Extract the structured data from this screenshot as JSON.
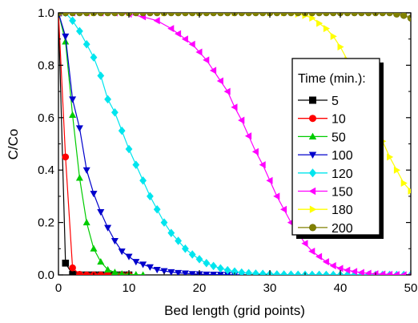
{
  "chart_data": {
    "type": "line",
    "title": "",
    "xlabel": "Bed length (grid points)",
    "ylabel": "C/Co",
    "xlim": [
      0,
      50
    ],
    "ylim": [
      0,
      1.0
    ],
    "xticks": [
      0,
      10,
      20,
      30,
      40,
      50
    ],
    "xtick_labels": [
      "0",
      "10",
      "20",
      "30",
      "40",
      "50"
    ],
    "yticks": [
      0.0,
      0.2,
      0.4,
      0.6,
      0.8,
      1.0
    ],
    "ytick_labels": [
      "0.0",
      "0.2",
      "0.4",
      "0.6",
      "0.8",
      "1.0"
    ],
    "grid": false,
    "legend_title": "Time (min.):",
    "legend_position": "right",
    "series": [
      {
        "name": "5",
        "color": "#000000",
        "marker": "square",
        "x": [
          0,
          1,
          2,
          3,
          4,
          5,
          6,
          7,
          8,
          9,
          10
        ],
        "y": [
          1.0,
          0.045,
          0.002,
          0,
          0,
          0,
          0,
          0,
          0,
          0,
          0
        ]
      },
      {
        "name": "10",
        "color": "#ff0000",
        "marker": "circle",
        "x": [
          0,
          1,
          2,
          3,
          4,
          5,
          6,
          7,
          8,
          9,
          10
        ],
        "y": [
          1.0,
          0.45,
          0.027,
          0.002,
          0,
          0,
          0,
          0,
          0,
          0,
          0
        ]
      },
      {
        "name": "50",
        "color": "#00cc00",
        "marker": "triangle-up",
        "x": [
          0,
          1,
          2,
          3,
          4,
          5,
          6,
          7,
          8,
          9,
          10,
          11,
          12
        ],
        "y": [
          1.0,
          0.89,
          0.61,
          0.37,
          0.2,
          0.1,
          0.05,
          0.02,
          0.01,
          0.004,
          0.002,
          0.001,
          0
        ]
      },
      {
        "name": "100",
        "color": "#0000cc",
        "marker": "triangle-down",
        "x": [
          0,
          1,
          2,
          3,
          4,
          5,
          6,
          7,
          8,
          9,
          10,
          11,
          12,
          13,
          14,
          15,
          16,
          17,
          18,
          19,
          20,
          21,
          22,
          23,
          24,
          25,
          26
        ],
        "y": [
          1.0,
          0.91,
          0.67,
          0.56,
          0.4,
          0.31,
          0.24,
          0.18,
          0.13,
          0.09,
          0.07,
          0.05,
          0.04,
          0.03,
          0.02,
          0.015,
          0.011,
          0.008,
          0.006,
          0.004,
          0.003,
          0.002,
          0.0015,
          0.001,
          0.0007,
          0.0004,
          0
        ]
      },
      {
        "name": "120",
        "color": "#00e5ee",
        "marker": "diamond",
        "x": [
          0,
          1,
          2,
          3,
          4,
          5,
          6,
          7,
          8,
          9,
          10,
          11,
          12,
          13,
          14,
          15,
          16,
          17,
          18,
          19,
          20,
          21,
          22,
          23,
          24,
          25,
          26,
          27,
          28,
          29,
          30,
          31,
          32,
          33,
          34,
          35,
          36,
          37,
          38,
          39,
          40,
          41,
          42,
          43,
          44,
          45,
          46,
          47,
          48,
          49,
          50
        ],
        "y": [
          1.0,
          1.0,
          0.97,
          0.93,
          0.88,
          0.83,
          0.76,
          0.67,
          0.62,
          0.55,
          0.48,
          0.42,
          0.36,
          0.3,
          0.25,
          0.2,
          0.16,
          0.13,
          0.1,
          0.078,
          0.06,
          0.045,
          0.034,
          0.025,
          0.018,
          0.013,
          0.009,
          0.007,
          0.005,
          0.004,
          0.003,
          0.002,
          0.0015,
          0.001,
          0.0008,
          0.0006,
          0.0004,
          0.0003,
          0.0002,
          0.0001,
          0,
          0,
          0,
          0,
          0,
          0,
          0,
          0,
          0,
          0,
          0
        ]
      },
      {
        "name": "150",
        "color": "#ff00ff",
        "marker": "triangle-left",
        "x": [
          0,
          2,
          4,
          6,
          8,
          10,
          12,
          14,
          16,
          17,
          18,
          19,
          20,
          21,
          22,
          23,
          24,
          25,
          26,
          27,
          28,
          29,
          30,
          31,
          32,
          33,
          34,
          35,
          36,
          37,
          38,
          39,
          40,
          41,
          42,
          43,
          44,
          45,
          46,
          47,
          48,
          49,
          50
        ],
        "y": [
          1.0,
          1.0,
          1.0,
          1.0,
          1.0,
          0.995,
          0.985,
          0.97,
          0.94,
          0.92,
          0.9,
          0.88,
          0.85,
          0.82,
          0.78,
          0.74,
          0.7,
          0.64,
          0.59,
          0.53,
          0.47,
          0.42,
          0.36,
          0.3,
          0.25,
          0.2,
          0.16,
          0.12,
          0.09,
          0.07,
          0.05,
          0.035,
          0.025,
          0.018,
          0.013,
          0.009,
          0.006,
          0.004,
          0.003,
          0.002,
          0.001,
          0.0005,
          0
        ]
      },
      {
        "name": "180",
        "color": "#ffff00",
        "marker": "triangle-right",
        "x": [
          0,
          5,
          10,
          15,
          20,
          25,
          30,
          32,
          34,
          35,
          36,
          37,
          38,
          39,
          40,
          41,
          42,
          43,
          44,
          45,
          46,
          47,
          48,
          49,
          50
        ],
        "y": [
          1.0,
          1.0,
          1.0,
          1.0,
          1.0,
          1.0,
          1.0,
          1.0,
          0.995,
          0.99,
          0.98,
          0.96,
          0.94,
          0.91,
          0.87,
          0.82,
          0.76,
          0.7,
          0.63,
          0.57,
          0.51,
          0.45,
          0.4,
          0.35,
          0.32
        ]
      },
      {
        "name": "200",
        "color": "#808000",
        "marker": "hexagon",
        "x": [
          0,
          1,
          2,
          3,
          4,
          5,
          6,
          7,
          8,
          9,
          10,
          11,
          12,
          13,
          14,
          15,
          16,
          17,
          18,
          19,
          20,
          21,
          22,
          23,
          24,
          25,
          26,
          27,
          28,
          29,
          30,
          31,
          32,
          33,
          34,
          35,
          36,
          37,
          38,
          39,
          40,
          41,
          42,
          43,
          44,
          45,
          46,
          47,
          48,
          49,
          50
        ],
        "y": [
          1.0,
          1.0,
          1.0,
          1.0,
          1.0,
          1.0,
          1.0,
          1.0,
          1.0,
          1.0,
          1.0,
          1.0,
          1.0,
          1.0,
          1.0,
          1.0,
          1.0,
          1.0,
          1.0,
          1.0,
          1.0,
          1.0,
          1.0,
          1.0,
          1.0,
          1.0,
          1.0,
          1.0,
          1.0,
          1.0,
          1.0,
          1.0,
          1.0,
          1.0,
          1.0,
          1.0,
          1.0,
          1.0,
          1.0,
          1.0,
          1.0,
          1.0,
          1.0,
          1.0,
          1.0,
          1.0,
          1.0,
          1.0,
          0.995,
          0.99,
          0.98
        ]
      }
    ]
  }
}
